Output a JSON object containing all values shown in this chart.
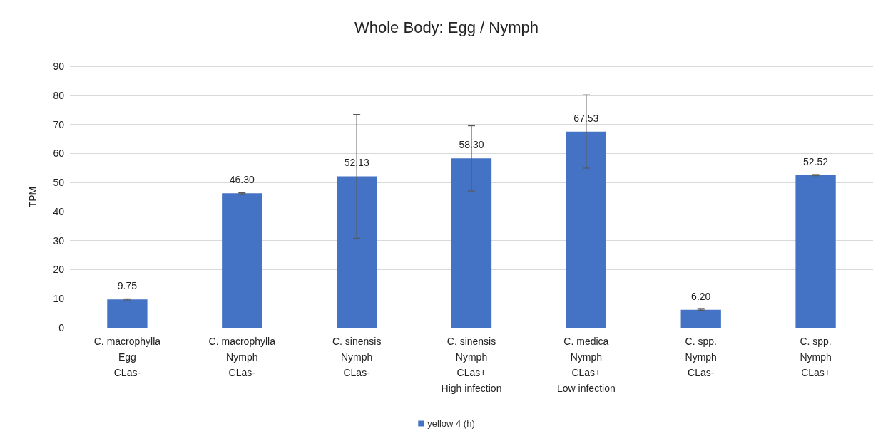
{
  "chart_data": {
    "type": "bar",
    "title": "Whole Body: Egg / Nymph",
    "ylabel": "TPM",
    "categories": [
      "C. macrophylla\nEgg\nCLas-",
      "C. macrophylla\nNymph\nCLas-",
      "C. sinensis\nNymph\nCLas-",
      "C. sinensis\nNymph\nCLas+\nHigh infection",
      "C. medica\nNymph\nCLas+\nLow infection",
      "C. spp.\nNymph\nCLas-",
      "C. spp.\nNymph\nCLas+"
    ],
    "series": [
      {
        "name": "yellow 4 (h)",
        "color": "#4472c4",
        "values": [
          9.75,
          46.3,
          52.13,
          58.3,
          67.53,
          6.2,
          52.52
        ],
        "errors": [
          0.2,
          0.2,
          21.3,
          11.2,
          12.6,
          0.2,
          0.2
        ],
        "value_labels": [
          "9.75",
          "46.30",
          "52.13",
          "58.30",
          "67.53",
          "6.20",
          "52.52"
        ]
      }
    ],
    "ylim": [
      0,
      90
    ],
    "yticks": [
      0,
      10,
      20,
      30,
      40,
      50,
      60,
      70,
      80,
      90
    ],
    "grid": "y",
    "legend": "bottom"
  }
}
